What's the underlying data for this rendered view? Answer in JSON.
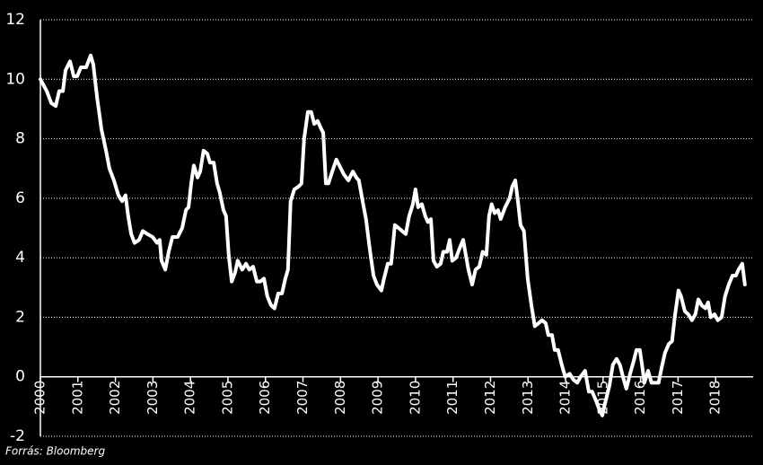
{
  "chart_data": {
    "type": "line",
    "source": "Forrás: Bloomberg",
    "xlim": [
      2000,
      2019
    ],
    "xticks": [
      2000,
      2001,
      2002,
      2003,
      2004,
      2005,
      2006,
      2007,
      2008,
      2009,
      2010,
      2011,
      2012,
      2013,
      2014,
      2015,
      2016,
      2017,
      2018
    ],
    "ylim": [
      -2,
      12
    ],
    "yticks": [
      -2,
      0,
      2,
      4,
      6,
      8,
      10,
      12
    ],
    "grid": true,
    "x": [
      2000.0,
      2000.17,
      2000.29,
      2000.41,
      2000.5,
      2000.6,
      2000.67,
      2000.79,
      2000.89,
      2000.98,
      2001.08,
      2001.22,
      2001.34,
      2001.41,
      2001.51,
      2001.63,
      2001.75,
      2001.84,
      2001.96,
      2002.08,
      2002.18,
      2002.27,
      2002.34,
      2002.42,
      2002.51,
      2002.63,
      2002.73,
      2002.85,
      2002.99,
      2003.11,
      2003.18,
      2003.23,
      2003.33,
      2003.42,
      2003.52,
      2003.66,
      2003.78,
      2003.88,
      2003.95,
      2004.02,
      2004.09,
      2004.19,
      2004.26,
      2004.35,
      2004.45,
      2004.52,
      2004.62,
      2004.71,
      2004.78,
      2004.88,
      2004.95,
      2005.02,
      2005.1,
      2005.19,
      2005.26,
      2005.38,
      2005.48,
      2005.57,
      2005.67,
      2005.77,
      2005.86,
      2005.96,
      2006.05,
      2006.15,
      2006.24,
      2006.34,
      2006.44,
      2006.53,
      2006.6,
      2006.67,
      2006.77,
      2006.89,
      2006.96,
      2007.03,
      2007.13,
      2007.22,
      2007.3,
      2007.39,
      2007.46,
      2007.54,
      2007.61,
      2007.68,
      2007.78,
      2007.89,
      2007.97,
      2008.09,
      2008.21,
      2008.33,
      2008.42,
      2008.49,
      2008.59,
      2008.68,
      2008.78,
      2008.88,
      2008.97,
      2009.09,
      2009.16,
      2009.26,
      2009.35,
      2009.45,
      2009.55,
      2009.64,
      2009.74,
      2009.83,
      2009.93,
      2010.0,
      2010.07,
      2010.17,
      2010.26,
      2010.33,
      2010.41,
      2010.48,
      2010.57,
      2010.67,
      2010.74,
      2010.84,
      2010.91,
      2010.98,
      2011.08,
      2011.17,
      2011.27,
      2011.34,
      2011.41,
      2011.51,
      2011.6,
      2011.7,
      2011.79,
      2011.89,
      2011.96,
      2012.03,
      2012.11,
      2012.2,
      2012.27,
      2012.39,
      2012.51,
      2012.58,
      2012.66,
      2012.73,
      2012.8,
      2012.89,
      2012.99,
      2013.09,
      2013.18,
      2013.28,
      2013.37,
      2013.47,
      2013.54,
      2013.64,
      2013.71,
      2013.8,
      2013.9,
      2013.99,
      2014.11,
      2014.21,
      2014.31,
      2014.4,
      2014.52,
      2014.62,
      2014.71,
      2014.81,
      2014.9,
      2014.98,
      2015.05,
      2015.17,
      2015.26,
      2015.36,
      2015.45,
      2015.53,
      2015.62,
      2015.72,
      2015.81,
      2015.89,
      2015.98,
      2016.05,
      2016.1,
      2016.2,
      2016.29,
      2016.39,
      2016.48,
      2016.56,
      2016.65,
      2016.75,
      2016.84,
      2016.91,
      2017.01,
      2017.08,
      2017.18,
      2017.27,
      2017.37,
      2017.46,
      2017.54,
      2017.63,
      2017.73,
      2017.8,
      2017.87,
      2017.97,
      2018.06,
      2018.16,
      2018.25,
      2018.35,
      2018.45,
      2018.54,
      2018.61,
      2018.71,
      2018.78
    ],
    "series": [
      {
        "color": "#ffffff",
        "values": [
          10.0,
          9.6,
          9.2,
          9.1,
          9.6,
          9.6,
          10.3,
          10.6,
          10.1,
          10.1,
          10.4,
          10.4,
          10.8,
          10.5,
          9.4,
          8.3,
          7.6,
          7.0,
          6.6,
          6.1,
          5.9,
          6.1,
          5.4,
          4.8,
          4.5,
          4.6,
          4.9,
          4.8,
          4.7,
          4.5,
          4.6,
          3.9,
          3.6,
          4.2,
          4.7,
          4.7,
          5.0,
          5.6,
          5.7,
          6.5,
          7.1,
          6.7,
          6.9,
          7.6,
          7.5,
          7.2,
          7.2,
          6.5,
          6.2,
          5.6,
          5.4,
          4.1,
          3.2,
          3.5,
          3.9,
          3.6,
          3.8,
          3.6,
          3.7,
          3.2,
          3.2,
          3.3,
          2.7,
          2.4,
          2.3,
          2.8,
          2.8,
          3.3,
          3.6,
          5.9,
          6.3,
          6.4,
          6.5,
          8.0,
          8.9,
          8.9,
          8.5,
          8.6,
          8.4,
          8.2,
          6.5,
          6.5,
          6.9,
          7.3,
          7.1,
          6.8,
          6.6,
          6.9,
          6.7,
          6.6,
          5.9,
          5.3,
          4.3,
          3.4,
          3.1,
          2.9,
          3.3,
          3.8,
          3.8,
          5.1,
          5.0,
          4.9,
          4.8,
          5.4,
          5.8,
          6.3,
          5.7,
          5.8,
          5.4,
          5.2,
          5.3,
          3.9,
          3.7,
          3.8,
          4.2,
          4.2,
          4.6,
          3.9,
          4.0,
          4.3,
          4.6,
          4.1,
          3.6,
          3.1,
          3.6,
          3.7,
          4.2,
          4.1,
          5.4,
          5.8,
          5.5,
          5.6,
          5.3,
          5.7,
          6.0,
          6.4,
          6.6,
          5.9,
          5.1,
          4.9,
          3.3,
          2.4,
          1.7,
          1.8,
          1.9,
          1.8,
          1.4,
          1.4,
          0.9,
          0.9,
          0.4,
          0.0,
          0.1,
          -0.1,
          -0.2,
          0.0,
          0.2,
          -0.5,
          -0.5,
          -0.8,
          -1.1,
          -1.3,
          -0.9,
          -0.3,
          0.4,
          0.6,
          0.4,
          0.0,
          -0.4,
          0.1,
          0.5,
          0.9,
          0.9,
          0.3,
          -0.2,
          0.2,
          -0.2,
          -0.2,
          -0.2,
          0.3,
          0.8,
          1.1,
          1.2,
          2.0,
          2.9,
          2.7,
          2.2,
          2.1,
          1.9,
          2.1,
          2.6,
          2.4,
          2.3,
          2.5,
          2.0,
          2.1,
          1.9,
          2.0,
          2.7,
          3.1,
          3.4,
          3.4,
          3.6,
          3.8,
          3.1
        ]
      }
    ]
  }
}
